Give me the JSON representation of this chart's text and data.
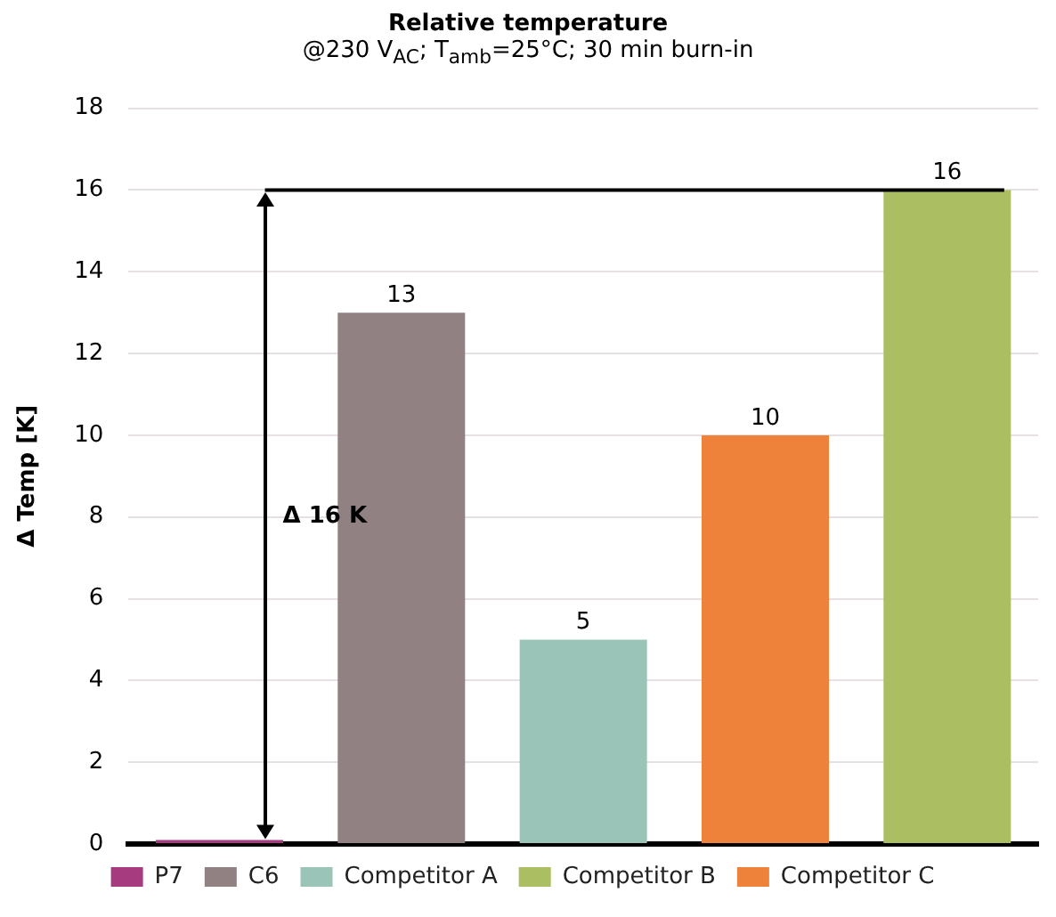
{
  "chart_data": {
    "type": "bar",
    "title": "Relative temperature",
    "subtitle": "@230 V$_{AC}$; T$_{amb}$=25°C; 30 min burn-in",
    "ylabel": "Δ Temp [K]",
    "categories": [
      null,
      null,
      null,
      null,
      null
    ],
    "series": [
      {
        "name": "P7",
        "color": "#a63b7f",
        "values": [
          0.1,
          null,
          null,
          null,
          null
        ],
        "value_labels": [
          null,
          null,
          null,
          null,
          null
        ]
      },
      {
        "name": "C6",
        "color": "#928183",
        "values": [
          null,
          13,
          null,
          null,
          null
        ],
        "value_labels": [
          null,
          "13",
          null,
          null,
          null
        ]
      },
      {
        "name": "Competitor A",
        "color": "#99c4b7",
        "values": [
          null,
          null,
          5,
          null,
          null
        ],
        "value_labels": [
          null,
          null,
          "5",
          null,
          null
        ]
      },
      {
        "name": "Competitor B",
        "color": "#abbf62",
        "values": [
          null,
          null,
          null,
          null,
          16
        ],
        "value_labels": [
          null,
          null,
          null,
          null,
          "16"
        ]
      },
      {
        "name": "Competitor C",
        "color": "#ee823b",
        "values": [
          null,
          null,
          null,
          10,
          null
        ],
        "value_labels": [
          null,
          null,
          null,
          "10",
          null
        ]
      }
    ],
    "ylim": [
      0,
      18
    ],
    "yticks": [
      0,
      2,
      4,
      6,
      8,
      10,
      12,
      14,
      16,
      18
    ],
    "grid": "y",
    "legend": "bottom",
    "tick_labels": "y",
    "ref_lines": [
      {
        "axis": "y",
        "value": 16,
        "label": null,
        "color": "#000000"
      }
    ],
    "annotations": [
      "Δ 16 K"
    ]
  }
}
